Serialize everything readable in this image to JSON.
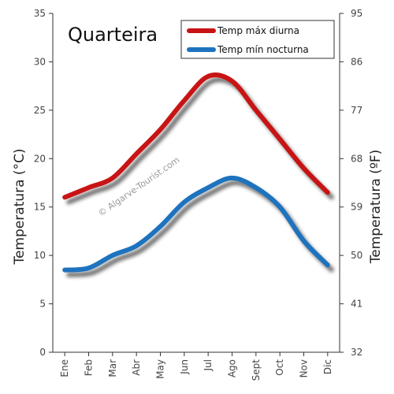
{
  "chart_data": {
    "type": "line",
    "title": "Quarteira",
    "categories": [
      "Ene",
      "Feb",
      "Mar",
      "Abr",
      "May",
      "Jun",
      "Jul",
      "Ago",
      "Sept",
      "Oct",
      "Nov",
      "Dic"
    ],
    "series": [
      {
        "name": "Temp máx diurna",
        "color": "#c81414",
        "values": [
          16,
          17,
          18,
          20.5,
          23,
          26,
          28.5,
          28,
          25,
          22,
          19,
          16.5
        ]
      },
      {
        "name": "Temp mín nocturna",
        "color": "#1e73be",
        "values": [
          8.5,
          8.7,
          10,
          11,
          13,
          15.5,
          17,
          18,
          17,
          15,
          11.5,
          9
        ]
      }
    ],
    "ylabel": "Temperatura (°C)",
    "ylabel_right": "Temperatura (ºF)",
    "ylim": [
      0,
      35
    ],
    "yticks": [
      0,
      5,
      10,
      15,
      20,
      25,
      30,
      35
    ],
    "ylim_right": [
      32,
      95
    ],
    "yticks_right": [
      32,
      41,
      50,
      59,
      68,
      77,
      86,
      95
    ],
    "legend_position": "top-right",
    "grid": false,
    "watermark": "© Algarve-Tourist.com"
  }
}
